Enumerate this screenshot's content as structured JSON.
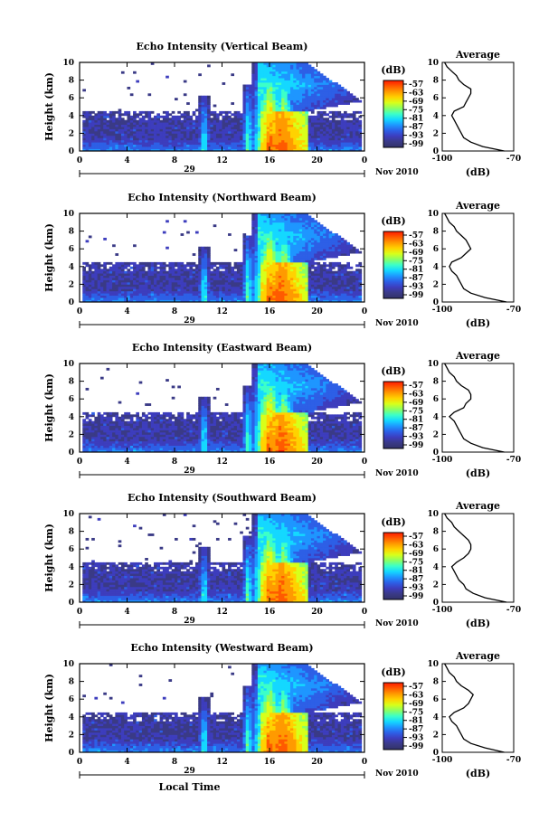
{
  "chart_data": [
    {
      "type": "heatmap",
      "title": "Echo Intensity (Vertical Beam)",
      "ylabel": "Height (km)",
      "x_ticks": [
        "0",
        "4",
        "8",
        "12",
        "16",
        "20",
        "0"
      ],
      "y_ticks": [
        "0",
        "2",
        "4",
        "6",
        "8",
        "10"
      ],
      "date_label": "29",
      "month_label": "Nov 2010",
      "colorbar_unit": "(dB)",
      "colorbar_ticks": [
        "-57",
        "-63",
        "-69",
        "-75",
        "-81",
        "-87",
        "-93",
        "-99"
      ],
      "xlim": [
        0,
        24
      ],
      "ylim": [
        0,
        10
      ],
      "profile": {
        "title": "Average",
        "xlabel": "(dB)",
        "x_ticks": [
          "-100",
          "-70"
        ],
        "y_ticks": [
          "0",
          "2",
          "4",
          "6",
          "8",
          "10"
        ],
        "xlim": [
          -100,
          -70
        ],
        "ylim": [
          0,
          10
        ],
        "height": [
          0,
          0.5,
          1,
          1.5,
          2,
          2.5,
          3,
          3.5,
          4,
          4.5,
          5,
          5.5,
          6,
          6.5,
          7,
          7.5,
          8,
          8.5,
          9,
          9.5,
          10
        ],
        "db": [
          -74,
          -83,
          -88,
          -91,
          -92,
          -93,
          -94,
          -95,
          -96,
          -95,
          -91,
          -90,
          -89,
          -88,
          -88,
          -91,
          -93,
          -94,
          -96,
          -98,
          -99
        ]
      }
    },
    {
      "type": "heatmap",
      "title": "Echo Intensity (Northward Beam)",
      "ylabel": "Height (km)",
      "x_ticks": [
        "0",
        "4",
        "8",
        "12",
        "16",
        "20",
        "0"
      ],
      "y_ticks": [
        "0",
        "2",
        "4",
        "6",
        "8",
        "10"
      ],
      "date_label": "29",
      "month_label": "Nov 2010",
      "colorbar_unit": "(dB)",
      "colorbar_ticks": [
        "-57",
        "-63",
        "-69",
        "-75",
        "-81",
        "-87",
        "-93",
        "-99"
      ],
      "xlim": [
        0,
        24
      ],
      "ylim": [
        0,
        10
      ],
      "profile": {
        "title": "Average",
        "xlabel": "(dB)",
        "x_ticks": [
          "-100",
          "-70"
        ],
        "y_ticks": [
          "0",
          "2",
          "4",
          "6",
          "8",
          "10"
        ],
        "xlim": [
          -100,
          -70
        ],
        "ylim": [
          0,
          10
        ],
        "height": [
          0,
          0.5,
          1,
          1.5,
          2,
          2.5,
          3,
          3.5,
          4,
          4.5,
          5,
          5.5,
          6,
          6.5,
          7,
          7.5,
          8,
          8.5,
          9,
          9.5,
          10
        ],
        "db": [
          -73,
          -82,
          -88,
          -91,
          -92,
          -93,
          -94,
          -96,
          -97,
          -96,
          -92,
          -90,
          -88,
          -89,
          -90,
          -92,
          -94,
          -95,
          -97,
          -98,
          -99
        ]
      }
    },
    {
      "type": "heatmap",
      "title": "Echo Intensity (Eastward Beam)",
      "ylabel": "Height (km)",
      "x_ticks": [
        "0",
        "4",
        "8",
        "12",
        "16",
        "20",
        "0"
      ],
      "y_ticks": [
        "0",
        "2",
        "4",
        "6",
        "8",
        "10"
      ],
      "date_label": "29",
      "month_label": "Nov 2010",
      "colorbar_unit": "(dB)",
      "colorbar_ticks": [
        "-57",
        "-63",
        "-69",
        "-75",
        "-81",
        "-87",
        "-93",
        "-99"
      ],
      "xlim": [
        0,
        24
      ],
      "ylim": [
        0,
        10
      ],
      "profile": {
        "title": "Average",
        "xlabel": "(dB)",
        "x_ticks": [
          "-100",
          "-70"
        ],
        "y_ticks": [
          "0",
          "2",
          "4",
          "6",
          "8",
          "10"
        ],
        "xlim": [
          -100,
          -70
        ],
        "ylim": [
          0,
          10
        ],
        "height": [
          0,
          0.5,
          1,
          1.5,
          2,
          2.5,
          3,
          3.5,
          4,
          4.5,
          5,
          5.5,
          6,
          6.5,
          7,
          7.5,
          8,
          8.5,
          9,
          9.5,
          10
        ],
        "db": [
          -74,
          -83,
          -88,
          -91,
          -92,
          -93,
          -94,
          -95,
          -97,
          -95,
          -91,
          -90,
          -88,
          -88,
          -89,
          -92,
          -94,
          -95,
          -97,
          -98,
          -99
        ]
      }
    },
    {
      "type": "heatmap",
      "title": "Echo Intensity (Southward Beam)",
      "ylabel": "Height (km)",
      "x_ticks": [
        "0",
        "4",
        "8",
        "12",
        "16",
        "20",
        "0"
      ],
      "y_ticks": [
        "0",
        "2",
        "4",
        "6",
        "8",
        "10"
      ],
      "date_label": "29",
      "month_label": "Nov 2010",
      "colorbar_unit": "(dB)",
      "colorbar_ticks": [
        "-57",
        "-63",
        "-69",
        "-75",
        "-81",
        "-87",
        "-93",
        "-99"
      ],
      "xlim": [
        0,
        24
      ],
      "ylim": [
        0,
        10
      ],
      "profile": {
        "title": "Average",
        "xlabel": "(dB)",
        "x_ticks": [
          "-100",
          "-70"
        ],
        "y_ticks": [
          "0",
          "2",
          "4",
          "6",
          "8",
          "10"
        ],
        "xlim": [
          -100,
          -70
        ],
        "ylim": [
          0,
          10
        ],
        "height": [
          0,
          0.5,
          1,
          1.5,
          2,
          2.5,
          3,
          3.5,
          4,
          4.5,
          5,
          5.5,
          6,
          6.5,
          7,
          7.5,
          8,
          8.5,
          9,
          9.5,
          10
        ],
        "db": [
          -73,
          -82,
          -87,
          -90,
          -91,
          -93,
          -94,
          -95,
          -96,
          -94,
          -91,
          -89,
          -88,
          -88,
          -89,
          -91,
          -93,
          -95,
          -96,
          -98,
          -99
        ]
      }
    },
    {
      "type": "heatmap",
      "title": "Echo Intensity (Westward Beam)",
      "ylabel": "Height (km)",
      "x_ticks": [
        "0",
        "4",
        "8",
        "12",
        "16",
        "20",
        "0"
      ],
      "y_ticks": [
        "0",
        "2",
        "4",
        "6",
        "8",
        "10"
      ],
      "date_label": "29",
      "month_label": "Nov 2010",
      "xlabel": "Local Time",
      "colorbar_unit": "(dB)",
      "colorbar_ticks": [
        "-57",
        "-63",
        "-69",
        "-75",
        "-81",
        "-87",
        "-93",
        "-99"
      ],
      "xlim": [
        0,
        24
      ],
      "ylim": [
        0,
        10
      ],
      "profile": {
        "title": "Average",
        "xlabel": "(dB)",
        "x_ticks": [
          "-100",
          "-70"
        ],
        "y_ticks": [
          "0",
          "2",
          "4",
          "6",
          "8",
          "10"
        ],
        "xlim": [
          -100,
          -70
        ],
        "ylim": [
          0,
          10
        ],
        "height": [
          0,
          0.5,
          1,
          1.5,
          2,
          2.5,
          3,
          3.5,
          4,
          4.5,
          5,
          5.5,
          6,
          6.5,
          7,
          7.5,
          8,
          8.5,
          9,
          9.5,
          10
        ],
        "db": [
          -74,
          -82,
          -88,
          -91,
          -92,
          -93,
          -94,
          -96,
          -97,
          -95,
          -91,
          -89,
          -88,
          -87,
          -89,
          -92,
          -94,
          -95,
          -97,
          -98,
          -99
        ]
      }
    }
  ],
  "colors": {
    "scale": [
      "#ff1a00",
      "#ff5a00",
      "#ff9a00",
      "#ffd200",
      "#d8ff1a",
      "#8aff64",
      "#3cffc8",
      "#14d8ff",
      "#1e96ff",
      "#2d5fe6",
      "#3d3dbd",
      "#3a3a86",
      "#32326a"
    ]
  }
}
